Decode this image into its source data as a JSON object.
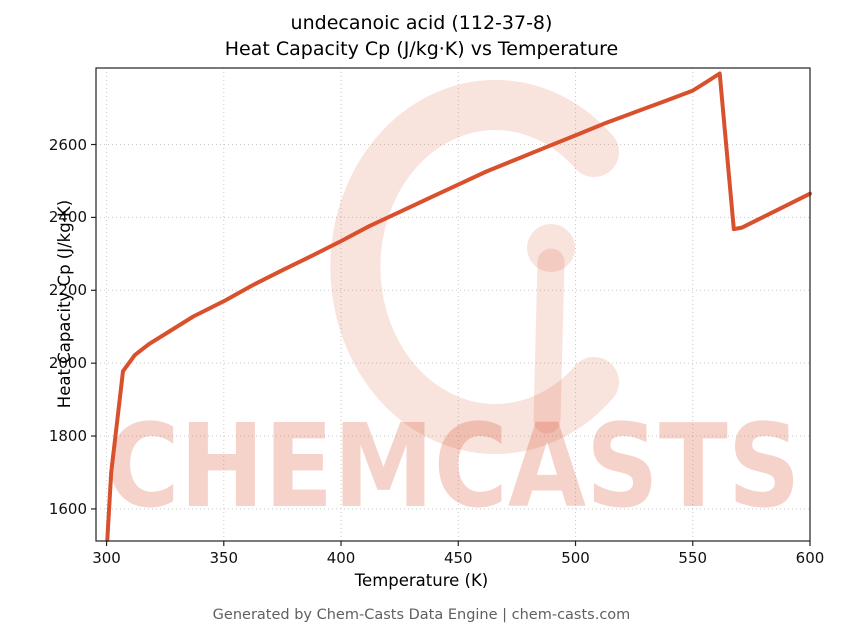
{
  "header": {
    "title_line1": "undecanoic acid (112-37-8)",
    "title_line2": "Heat Capacity Cp (J/kg·K) vs Temperature"
  },
  "footer": {
    "text": "Generated by Chem-Casts Data Engine | chem-casts.com"
  },
  "watermark": {
    "text": "CHEMCASTS",
    "color": "#d9512c",
    "text_opacity": 0.25,
    "logo_opacity": 0.16
  },
  "chart_data": {
    "type": "line",
    "title": "undecanoic acid (112-37-8) — Heat Capacity Cp (J/kg·K) vs Temperature",
    "xlabel": "Temperature (K)",
    "ylabel": "Heat Capacity Cp (J/kg·K)",
    "xlim": [
      295.5,
      600
    ],
    "ylim": [
      1512,
      2810
    ],
    "xticks": [
      300,
      350,
      400,
      450,
      500,
      550,
      600
    ],
    "yticks": [
      1600,
      1800,
      2000,
      2200,
      2400,
      2600
    ],
    "grid": true,
    "line_color": "#d9512c",
    "line_width": 4,
    "series": [
      {
        "name": "Heat Capacity Cp",
        "x": [
          300.3,
          302,
          307,
          312,
          318,
          325,
          337,
          350,
          362,
          375,
          388,
          400,
          412,
          425,
          438,
          450,
          462,
          475,
          488,
          500,
          512,
          525,
          538,
          550,
          556,
          561.5,
          567.5,
          571,
          600
        ],
        "y": [
          1515,
          1700,
          1978,
          2022,
          2052,
          2080,
          2128,
          2170,
          2213,
          2255,
          2296,
          2335,
          2376,
          2415,
          2454,
          2490,
          2526,
          2560,
          2594,
          2625,
          2657,
          2688,
          2719,
          2748,
          2772,
          2795,
          2368,
          2372,
          2465
        ]
      }
    ]
  }
}
